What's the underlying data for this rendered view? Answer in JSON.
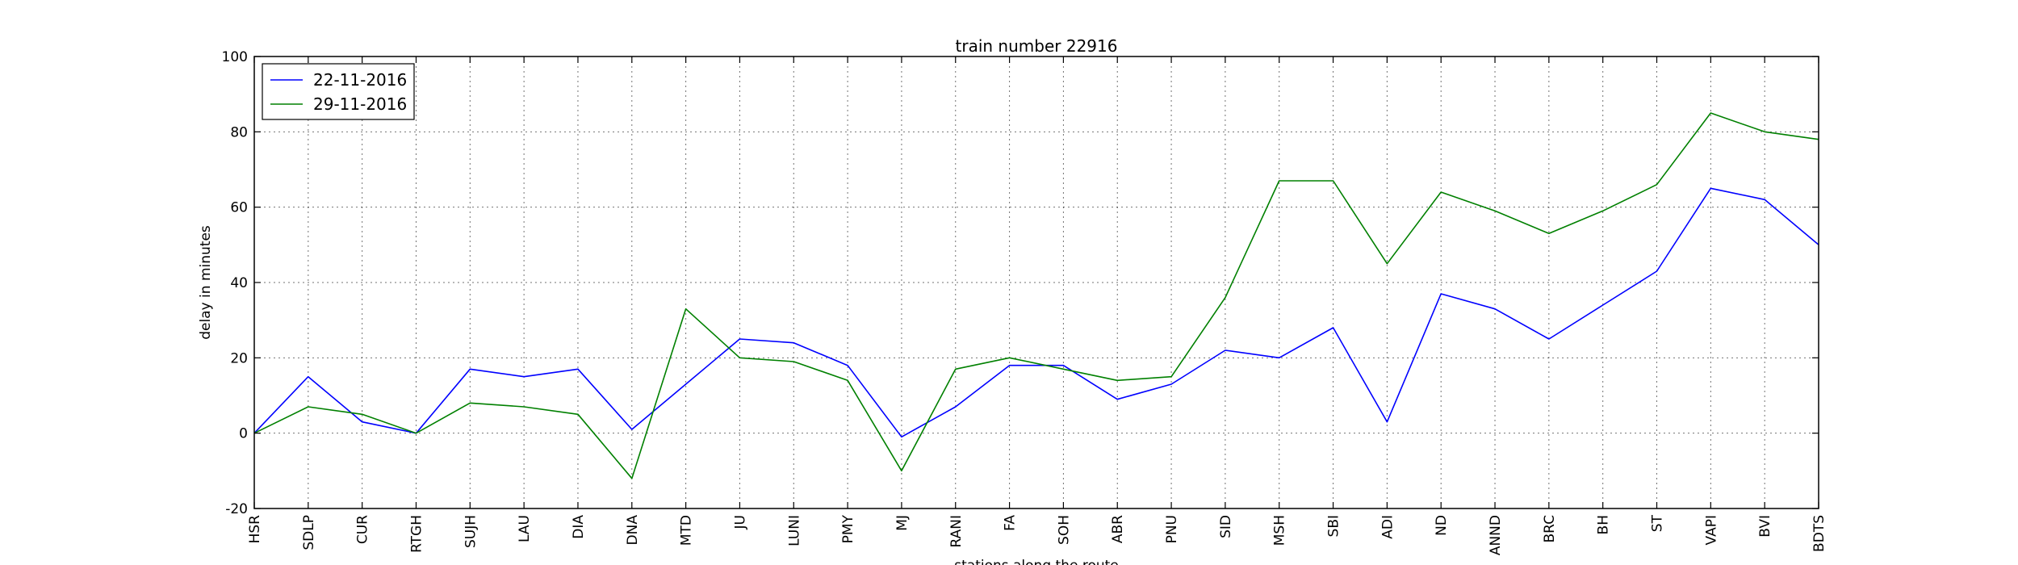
{
  "chart_data": {
    "type": "line",
    "title": "train number 22916",
    "xlabel": "stations along the route",
    "ylabel": "delay in minutes",
    "ylim": [
      -20,
      100
    ],
    "yticks": [
      -20,
      0,
      20,
      40,
      60,
      80,
      100
    ],
    "grid": true,
    "legend_position": "upper-left",
    "categories": [
      "HSR",
      "SDLP",
      "CUR",
      "RTGH",
      "SUJH",
      "LAU",
      "DIA",
      "DNA",
      "MTD",
      "JU",
      "LUNI",
      "PMY",
      "MJ",
      "RANI",
      "FA",
      "SOH",
      "ABR",
      "PNU",
      "SID",
      "MSH",
      "SBI",
      "ADI",
      "ND",
      "ANND",
      "BRC",
      "BH",
      "ST",
      "VAPI",
      "BVI",
      "BDTS"
    ],
    "series": [
      {
        "name": "22-11-2016",
        "color": "#0000ff",
        "values": [
          0,
          15,
          3,
          0,
          17,
          15,
          17,
          1,
          13,
          25,
          24,
          18,
          -1,
          7,
          18,
          18,
          9,
          13,
          22,
          20,
          28,
          3,
          37,
          33,
          25,
          34,
          43,
          65,
          62,
          50
        ]
      },
      {
        "name": "29-11-2016",
        "color": "#008000",
        "values": [
          0,
          7,
          5,
          0,
          8,
          7,
          5,
          -12,
          33,
          20,
          19,
          14,
          -10,
          17,
          20,
          17,
          14,
          15,
          36,
          67,
          67,
          45,
          64,
          59,
          53,
          59,
          66,
          85,
          80,
          78
        ]
      }
    ]
  }
}
